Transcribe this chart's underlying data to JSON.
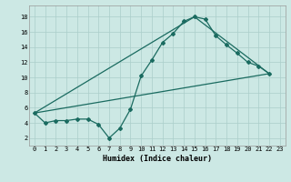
{
  "xlabel": "Humidex (Indice chaleur)",
  "bg_color": "#cce8e4",
  "grid_color": "#aaceca",
  "line_color": "#1a6b60",
  "xlim": [
    -0.5,
    23.5
  ],
  "ylim": [
    1.0,
    19.5
  ],
  "yticks": [
    2,
    4,
    6,
    8,
    10,
    12,
    14,
    16,
    18
  ],
  "xticks": [
    0,
    1,
    2,
    3,
    4,
    5,
    6,
    7,
    8,
    9,
    10,
    11,
    12,
    13,
    14,
    15,
    16,
    17,
    18,
    19,
    20,
    21,
    22,
    23
  ],
  "line1_x": [
    0,
    1,
    2,
    3,
    4,
    5,
    6,
    7,
    8,
    9,
    10,
    11,
    12,
    13,
    14,
    15,
    16,
    17,
    18,
    19,
    20,
    21,
    22
  ],
  "line1_y": [
    5.3,
    4.0,
    4.3,
    4.3,
    4.5,
    4.5,
    3.8,
    2.0,
    3.3,
    5.8,
    10.2,
    12.3,
    14.6,
    15.8,
    17.4,
    18.0,
    17.7,
    15.5,
    14.3,
    13.2,
    12.0,
    11.5,
    10.5
  ],
  "line2_x": [
    0,
    22
  ],
  "line2_y": [
    5.3,
    10.5
  ],
  "line3_x": [
    0,
    15,
    22
  ],
  "line3_y": [
    5.3,
    18.0,
    10.5
  ],
  "marker": "D",
  "markersize": 2.0,
  "linewidth": 0.9,
  "tick_fontsize": 5.0,
  "xlabel_fontsize": 6.0
}
